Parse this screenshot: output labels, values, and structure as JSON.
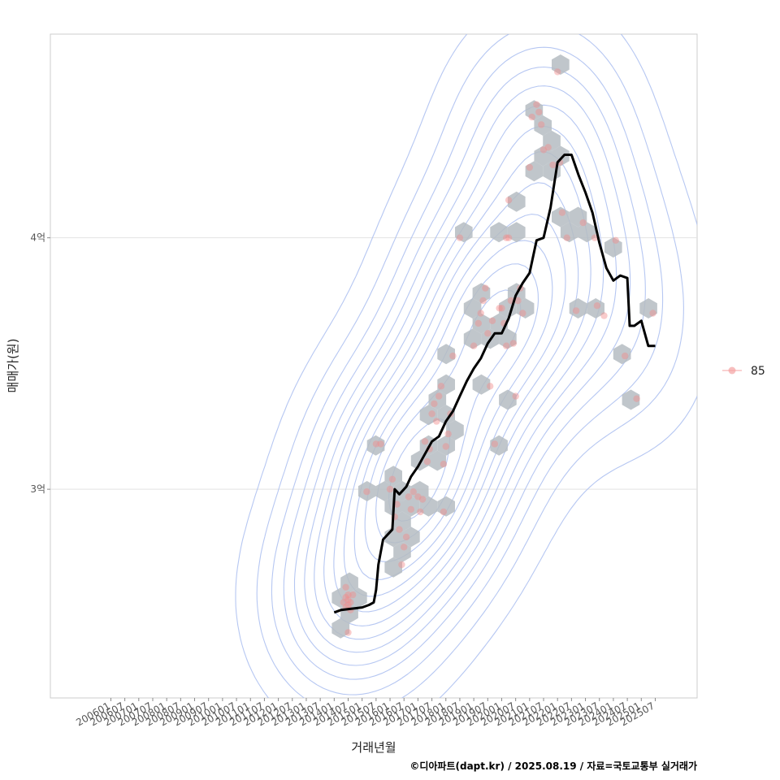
{
  "chart_data": {
    "type": "scatter",
    "title": "",
    "xlabel": "거래년월",
    "ylabel": "매매가(원)",
    "caption": "©디아파트(dapt.kr) / 2025.08.19 / 자료=국토교통부 실거래가",
    "x_ticks": [
      "200601",
      "200607",
      "200701",
      "200707",
      "200801",
      "200807",
      "200901",
      "200907",
      "201001",
      "201007",
      "201101",
      "201107",
      "201201",
      "201207",
      "201301",
      "201307",
      "201401",
      "201407",
      "201501",
      "201507",
      "201601",
      "201607",
      "201701",
      "201707",
      "201801",
      "201807",
      "201901",
      "201907",
      "202001",
      "202007",
      "202101",
      "202107",
      "202201",
      "202207",
      "202301",
      "202307",
      "202401",
      "202407",
      "202501",
      "202507"
    ],
    "y_ticks": [
      {
        "value": 300000000,
        "label": "3억"
      },
      {
        "value": 400000000,
        "label": "4억"
      }
    ],
    "ylim": [
      217000000,
      481000000
    ],
    "xlim": [
      "2003-11",
      "2027-01"
    ],
    "grid": true,
    "legend": {
      "position": "right",
      "entries": [
        {
          "label": "85",
          "color": "#f4a3a3"
        }
      ]
    },
    "colors": {
      "points": "#f28b8b",
      "hex": "#b5bcc2",
      "contour": "#a9bdf0",
      "trend": "#000000"
    },
    "series": [
      {
        "name": "85",
        "kind": "points",
        "points": [
          [
            "2014-05",
            255000000
          ],
          [
            "2014-06",
            257000000
          ],
          [
            "2014-06",
            253000000
          ],
          [
            "2014-07",
            256000000
          ],
          [
            "2014-07",
            254000000
          ],
          [
            "2014-07",
            258000000
          ],
          [
            "2014-08",
            255000000
          ],
          [
            "2014-08",
            252000000
          ],
          [
            "2014-06",
            261000000
          ],
          [
            "2014-07",
            243000000
          ],
          [
            "2014-09",
            258000000
          ],
          [
            "2015-03",
            299000000
          ],
          [
            "2015-07",
            318000000
          ],
          [
            "2015-09",
            318000000
          ],
          [
            "2016-02",
            304000000
          ],
          [
            "2016-01",
            300000000
          ],
          [
            "2016-03",
            289000000
          ],
          [
            "2016-04",
            294000000
          ],
          [
            "2016-05",
            284000000
          ],
          [
            "2016-06",
            270000000
          ],
          [
            "2016-07",
            277000000
          ],
          [
            "2016-08",
            281000000
          ],
          [
            "2016-09",
            297000000
          ],
          [
            "2016-10",
            292000000
          ],
          [
            "2016-11",
            299000000
          ],
          [
            "2017-01",
            297000000
          ],
          [
            "2017-02",
            291000000
          ],
          [
            "2017-03",
            296000000
          ],
          [
            "2017-04",
            319000000
          ],
          [
            "2017-05",
            311000000
          ],
          [
            "2017-06",
            316000000
          ],
          [
            "2017-07",
            330000000
          ],
          [
            "2017-08",
            334000000
          ],
          [
            "2017-09",
            327000000
          ],
          [
            "2017-10",
            337000000
          ],
          [
            "2017-11",
            341000000
          ],
          [
            "2017-12",
            310000000
          ],
          [
            "2017-12",
            291000000
          ],
          [
            "2018-01",
            317000000
          ],
          [
            "2018-02",
            322000000
          ],
          [
            "2018-03",
            330000000
          ],
          [
            "2018-04",
            353000000
          ],
          [
            "2018-07",
            400000000
          ],
          [
            "2019-01",
            357000000
          ],
          [
            "2019-03",
            366000000
          ],
          [
            "2019-04",
            370000000
          ],
          [
            "2019-05",
            375000000
          ],
          [
            "2019-06",
            380000000
          ],
          [
            "2019-07",
            362000000
          ],
          [
            "2019-08",
            341000000
          ],
          [
            "2019-09",
            367000000
          ],
          [
            "2019-10",
            318000000
          ],
          [
            "2019-12",
            372000000
          ],
          [
            "2020-01",
            372000000
          ],
          [
            "2020-02",
            366000000
          ],
          [
            "2020-03",
            357000000
          ],
          [
            "2020-03",
            400000000
          ],
          [
            "2020-04",
            415000000
          ],
          [
            "2020-04",
            400000000
          ],
          [
            "2020-05",
            375000000
          ],
          [
            "2020-06",
            358000000
          ],
          [
            "2020-07",
            337000000
          ],
          [
            "2020-08",
            375000000
          ],
          [
            "2020-09",
            380000000
          ],
          [
            "2020-10",
            370000000
          ],
          [
            "2021-01",
            428000000
          ],
          [
            "2021-02",
            448000000
          ],
          [
            "2021-04",
            453000000
          ],
          [
            "2021-05",
            450000000
          ],
          [
            "2021-06",
            445000000
          ],
          [
            "2021-07",
            435000000
          ],
          [
            "2021-09",
            436000000
          ],
          [
            "2021-11",
            429000000
          ],
          [
            "2022-01",
            466000000
          ],
          [
            "2022-02",
            430000000
          ],
          [
            "2022-03",
            410000000
          ],
          [
            "2022-05",
            400000000
          ],
          [
            "2022-09",
            371000000
          ],
          [
            "2022-12",
            406000000
          ],
          [
            "2023-05",
            400000000
          ],
          [
            "2023-06",
            373000000
          ],
          [
            "2023-09",
            369000000
          ],
          [
            "2024-02",
            399000000
          ],
          [
            "2024-06",
            353000000
          ],
          [
            "2024-11",
            336000000
          ],
          [
            "2025-06",
            370000000
          ]
        ]
      },
      {
        "name": "",
        "kind": "line",
        "points": [
          [
            "2014-01",
            251000000
          ],
          [
            "2014-04",
            252000000
          ],
          [
            "2015-01",
            253000000
          ],
          [
            "2015-04",
            254000000
          ],
          [
            "2015-06",
            255000000
          ],
          [
            "2015-07",
            260000000
          ],
          [
            "2015-08",
            270000000
          ],
          [
            "2015-10",
            280000000
          ],
          [
            "2016-02",
            284000000
          ],
          [
            "2016-03",
            300000000
          ],
          [
            "2016-05",
            298000000
          ],
          [
            "2016-08",
            301000000
          ],
          [
            "2016-10",
            305000000
          ],
          [
            "2017-01",
            309000000
          ],
          [
            "2017-04",
            314000000
          ],
          [
            "2017-07",
            319000000
          ],
          [
            "2017-10",
            321000000
          ],
          [
            "2018-01",
            327000000
          ],
          [
            "2018-04",
            331000000
          ],
          [
            "2018-07",
            337000000
          ],
          [
            "2018-10",
            343000000
          ],
          [
            "2019-01",
            348000000
          ],
          [
            "2019-04",
            352000000
          ],
          [
            "2019-07",
            358000000
          ],
          [
            "2019-10",
            362000000
          ],
          [
            "2020-01",
            362000000
          ],
          [
            "2020-04",
            368000000
          ],
          [
            "2020-07",
            377000000
          ],
          [
            "2020-10",
            382000000
          ],
          [
            "2021-01",
            386000000
          ],
          [
            "2021-04",
            399000000
          ],
          [
            "2021-07",
            400000000
          ],
          [
            "2021-10",
            412000000
          ],
          [
            "2022-01",
            430000000
          ],
          [
            "2022-04",
            433000000
          ],
          [
            "2022-07",
            433000000
          ],
          [
            "2022-10",
            425000000
          ],
          [
            "2023-01",
            418000000
          ],
          [
            "2023-04",
            410000000
          ],
          [
            "2023-07",
            398000000
          ],
          [
            "2023-10",
            388000000
          ],
          [
            "2024-01",
            383000000
          ],
          [
            "2024-04",
            385000000
          ],
          [
            "2024-07",
            384000000
          ],
          [
            "2024-08",
            365000000
          ],
          [
            "2024-10",
            365000000
          ],
          [
            "2025-01",
            367000000
          ],
          [
            "2025-04",
            357000000
          ],
          [
            "2025-07",
            357000000
          ]
        ]
      }
    ]
  }
}
